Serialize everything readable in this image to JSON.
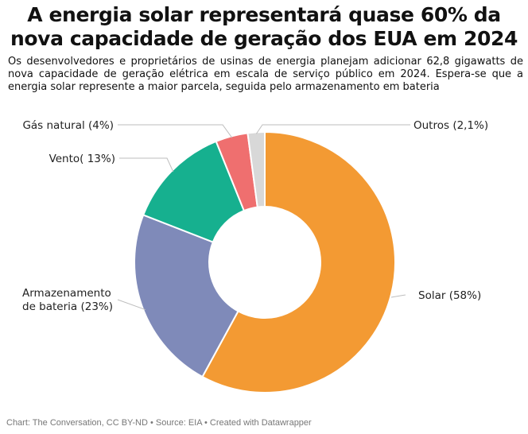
{
  "header": {
    "title": "A energia solar representará quase 60% da nova capacidade de geração dos EUA em 2024",
    "subtitle": "Os desenvolvedores e proprietários de usinas de energia planejam adicionar 62,8 gigawatts de nova capacidade de geração elétrica em escala de serviço público em 2024. Espera-se que a energia solar represente a maior parcela, seguida pelo armazenamento em bateria"
  },
  "chart_data": {
    "type": "pie",
    "donut": true,
    "title": "A energia solar representará quase 60% da nova capacidade de geração dos EUA em 2024",
    "unit": "%",
    "slices": [
      {
        "name": "Solar",
        "value": 58,
        "label": "Solar (58%)",
        "color": "#f39a33"
      },
      {
        "name": "Armazenamento de bateria",
        "value": 23,
        "label_lines": [
          "Armazenamento",
          "de bateria (23%)"
        ],
        "color": "#7f8ab9"
      },
      {
        "name": "Vento",
        "value": 13,
        "label": "Vento( 13%)",
        "color": "#16b08f"
      },
      {
        "name": "Gás natural",
        "value": 4,
        "label": "Gás natural (4%)",
        "color": "#ef6f6f"
      },
      {
        "name": "Outros",
        "value": 2.1,
        "label": "Outros (2,1%)",
        "color": "#d8d8d8"
      }
    ]
  },
  "footer": {
    "credit": "Chart: The Conversation, CC BY-ND • Source: EIA • Created with Datawrapper"
  }
}
